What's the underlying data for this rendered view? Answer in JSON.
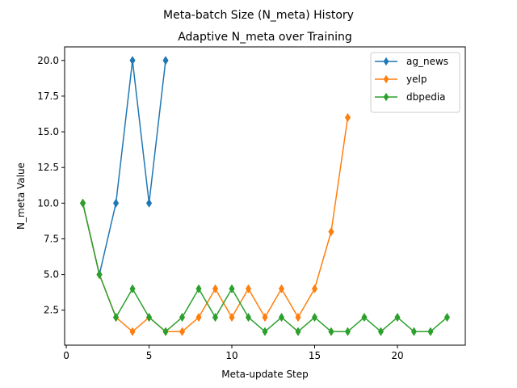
{
  "chart_data": {
    "type": "line",
    "suptitle": "Meta-batch Size (N_meta) History",
    "title": "Adaptive N_meta over Training",
    "xlabel": "Meta-update Step",
    "ylabel": "N_meta Value",
    "xlim": [
      -0.1,
      24.1
    ],
    "ylim": [
      0.05,
      20.95
    ],
    "xticks": [
      0,
      5,
      10,
      15,
      20
    ],
    "yticks": [
      2.5,
      5.0,
      7.5,
      10.0,
      12.5,
      15.0,
      17.5,
      20.0
    ],
    "xtick_labels": [
      "0",
      "5",
      "10",
      "15",
      "20"
    ],
    "ytick_labels": [
      "2.5",
      "5.0",
      "7.5",
      "10.0",
      "12.5",
      "15.0",
      "17.5",
      "20.0"
    ],
    "grid": false,
    "legend_position": "upper right",
    "marker": "thin_diamond",
    "series": [
      {
        "name": "ag_news",
        "color": "#1f77b4",
        "x": [
          1,
          2,
          3,
          4,
          5,
          6
        ],
        "y": [
          10,
          5,
          10,
          20,
          10,
          20
        ]
      },
      {
        "name": "yelp",
        "color": "#ff7f0e",
        "x": [
          1,
          2,
          3,
          4,
          5,
          6,
          7,
          8,
          9,
          10,
          11,
          12,
          13,
          14,
          15,
          16,
          17
        ],
        "y": [
          10,
          5,
          2,
          1,
          2,
          1,
          1,
          2,
          4,
          2,
          4,
          2,
          4,
          2,
          4,
          8,
          16
        ]
      },
      {
        "name": "dbpedia",
        "color": "#2ca02c",
        "x": [
          1,
          2,
          3,
          4,
          5,
          6,
          7,
          8,
          9,
          10,
          11,
          12,
          13,
          14,
          15,
          16,
          17,
          18,
          19,
          20,
          21,
          22,
          23
        ],
        "y": [
          10,
          5,
          2,
          4,
          2,
          1,
          2,
          4,
          2,
          4,
          2,
          1,
          2,
          1,
          2,
          1,
          1,
          2,
          1,
          2,
          1,
          1,
          2
        ]
      }
    ]
  }
}
